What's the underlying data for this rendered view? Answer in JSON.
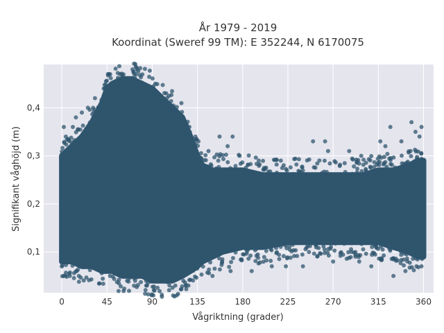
{
  "chart_data": {
    "type": "scatter",
    "title_line1": "År 1979 - 2019",
    "title_line2": "Koordinat (Sweref 99 TM): E 352244, N 6170075",
    "xlabel": "Vågriktning (grader)",
    "ylabel": "Signifikant våghöjd (m)",
    "xlim": [
      -18,
      370
    ],
    "ylim": [
      0.015,
      0.49
    ],
    "x_ticks": [
      0,
      45,
      90,
      135,
      180,
      225,
      270,
      315,
      360
    ],
    "y_ticks": [
      0.1,
      0.2,
      0.3,
      0.4
    ],
    "y_tick_labels": [
      "0,1",
      "0,2",
      "0,3",
      "0,4"
    ],
    "grid": true,
    "marker_color": "#2f556d",
    "background_color": "#e5e5ee",
    "envelope": {
      "x": [
        0,
        10,
        20,
        30,
        40,
        45,
        50,
        60,
        70,
        80,
        90,
        100,
        110,
        120,
        128,
        135,
        140,
        150,
        160,
        180,
        200,
        225,
        250,
        270,
        300,
        315,
        330,
        345,
        355,
        360
      ],
      "upper": [
        0.3,
        0.32,
        0.34,
        0.37,
        0.41,
        0.44,
        0.45,
        0.46,
        0.46,
        0.45,
        0.44,
        0.42,
        0.4,
        0.38,
        0.34,
        0.3,
        0.28,
        0.27,
        0.27,
        0.27,
        0.26,
        0.26,
        0.26,
        0.26,
        0.26,
        0.27,
        0.27,
        0.28,
        0.29,
        0.29
      ],
      "lower": [
        0.08,
        0.08,
        0.07,
        0.07,
        0.06,
        0.06,
        0.06,
        0.05,
        0.05,
        0.05,
        0.04,
        0.04,
        0.04,
        0.05,
        0.06,
        0.07,
        0.08,
        0.09,
        0.1,
        0.11,
        0.11,
        0.12,
        0.12,
        0.12,
        0.12,
        0.12,
        0.11,
        0.1,
        0.09,
        0.09
      ]
    },
    "outliers": [
      {
        "x": 2,
        "y": 0.36
      },
      {
        "x": 4,
        "y": 0.34
      },
      {
        "x": 11,
        "y": 0.36
      },
      {
        "x": 14,
        "y": 0.38
      },
      {
        "x": 20,
        "y": 0.39
      },
      {
        "x": 26,
        "y": 0.4
      },
      {
        "x": 33,
        "y": 0.42
      },
      {
        "x": 43,
        "y": 0.44
      },
      {
        "x": 47,
        "y": 0.47
      },
      {
        "x": 58,
        "y": 0.47
      },
      {
        "x": 72,
        "y": 0.47
      },
      {
        "x": 93,
        "y": 0.45
      },
      {
        "x": 104,
        "y": 0.43
      },
      {
        "x": 120,
        "y": 0.38
      },
      {
        "x": 127,
        "y": 0.36
      },
      {
        "x": 133,
        "y": 0.34
      },
      {
        "x": 136,
        "y": 0.33
      },
      {
        "x": 146,
        "y": 0.31
      },
      {
        "x": 157,
        "y": 0.34
      },
      {
        "x": 165,
        "y": 0.32
      },
      {
        "x": 170,
        "y": 0.34
      },
      {
        "x": 177,
        "y": 0.3
      },
      {
        "x": 196,
        "y": 0.29
      },
      {
        "x": 218,
        "y": 0.29
      },
      {
        "x": 250,
        "y": 0.33
      },
      {
        "x": 262,
        "y": 0.33
      },
      {
        "x": 265,
        "y": 0.31
      },
      {
        "x": 286,
        "y": 0.31
      },
      {
        "x": 298,
        "y": 0.3
      },
      {
        "x": 317,
        "y": 0.33
      },
      {
        "x": 322,
        "y": 0.32
      },
      {
        "x": 327,
        "y": 0.36
      },
      {
        "x": 338,
        "y": 0.33
      },
      {
        "x": 348,
        "y": 0.37
      },
      {
        "x": 352,
        "y": 0.35
      },
      {
        "x": 356,
        "y": 0.34
      },
      {
        "x": 358,
        "y": 0.36
      },
      {
        "x": 2,
        "y": 0.05
      },
      {
        "x": 8,
        "y": 0.05
      },
      {
        "x": 17,
        "y": 0.05
      },
      {
        "x": 48,
        "y": 0.05
      },
      {
        "x": 65,
        "y": 0.04
      },
      {
        "x": 84,
        "y": 0.04
      },
      {
        "x": 98,
        "y": 0.04
      },
      {
        "x": 107,
        "y": 0.04
      },
      {
        "x": 113,
        "y": 0.03
      },
      {
        "x": 121,
        "y": 0.04
      },
      {
        "x": 126,
        "y": 0.03
      },
      {
        "x": 150,
        "y": 0.05
      },
      {
        "x": 168,
        "y": 0.06
      },
      {
        "x": 189,
        "y": 0.06
      },
      {
        "x": 209,
        "y": 0.07
      },
      {
        "x": 223,
        "y": 0.07
      },
      {
        "x": 240,
        "y": 0.07
      },
      {
        "x": 270,
        "y": 0.08
      },
      {
        "x": 296,
        "y": 0.08
      },
      {
        "x": 308,
        "y": 0.07
      },
      {
        "x": 330,
        "y": 0.05
      },
      {
        "x": 342,
        "y": 0.06
      },
      {
        "x": 353,
        "y": 0.07
      },
      {
        "x": 358,
        "y": 0.07
      }
    ]
  }
}
